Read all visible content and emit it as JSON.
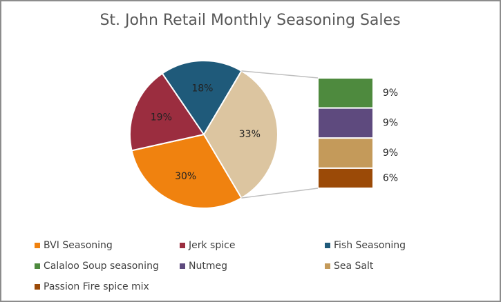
{
  "chart_data": {
    "type": "pie-of-bar",
    "title": "St. John Retail Monthly Seasoning Sales",
    "pie": {
      "categories": [
        "BVI Seasoning",
        "Jerk spice",
        "Fish Seasoning",
        null
      ],
      "values": [
        30,
        19,
        18,
        33
      ],
      "value_labels": [
        "30%",
        "19%",
        "18%",
        "33%"
      ],
      "colors": [
        "#f0820f",
        "#9b2d3f",
        "#1f5a7a",
        "#dcc5a0"
      ]
    },
    "bar": {
      "categories": [
        "Calaloo Soup seasoning",
        "Nutmeg",
        "Sea Salt",
        "Passion Fire spice mix"
      ],
      "values": [
        9,
        9,
        9,
        6
      ],
      "value_labels": [
        "9%",
        "9%",
        "9%",
        "6%"
      ],
      "colors": [
        "#4e8a3e",
        "#5e4a7e",
        "#c49a5a",
        "#9b4a07"
      ]
    },
    "legend": "bottom"
  }
}
